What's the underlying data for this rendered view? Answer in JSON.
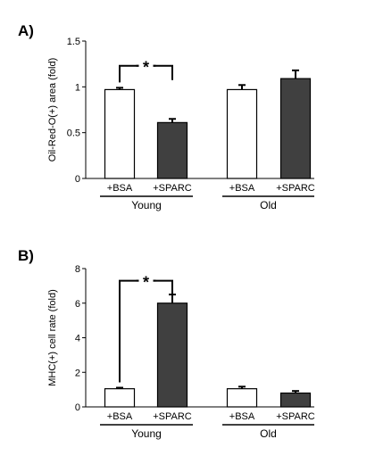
{
  "colors": {
    "bsa": "#ffffff",
    "sparc": "#404040",
    "stroke": "#000000"
  },
  "chart_data": [
    {
      "type": "bar",
      "panel_label": "A)",
      "ylabel": "Oil-Red-O(+) area (fold)",
      "ylim": [
        0,
        1.5
      ],
      "yticks": [
        0,
        0.5,
        1,
        1.5
      ],
      "ytick_labels": [
        "0",
        "0.5",
        "1",
        "1.5"
      ],
      "groups": [
        {
          "name": "Young",
          "categories": [
            "+BSA",
            "+SPARC"
          ],
          "values": [
            0.97,
            0.61
          ],
          "errors": [
            0.02,
            0.04
          ]
        },
        {
          "name": "Old",
          "categories": [
            "+BSA",
            "+SPARC"
          ],
          "values": [
            0.97,
            1.09
          ],
          "errors": [
            0.05,
            0.09
          ]
        }
      ],
      "annotations": [
        {
          "text": "*",
          "group": 0,
          "bracket_y": 1.23
        }
      ]
    },
    {
      "type": "bar",
      "panel_label": "B)",
      "ylabel": "MHC(+) cell rate (fold)",
      "ylim": [
        0,
        8
      ],
      "yticks": [
        0,
        2,
        4,
        6,
        8
      ],
      "ytick_labels": [
        "0",
        "2",
        "4",
        "6",
        "8"
      ],
      "groups": [
        {
          "name": "Young",
          "categories": [
            "+BSA",
            "+SPARC"
          ],
          "values": [
            1.05,
            6.0
          ],
          "errors": [
            0.06,
            0.5
          ]
        },
        {
          "name": "Old",
          "categories": [
            "+BSA",
            "+SPARC"
          ],
          "values": [
            1.05,
            0.8
          ],
          "errors": [
            0.12,
            0.12
          ]
        }
      ],
      "annotations": [
        {
          "text": "*",
          "group": 0,
          "bracket_y": 7.3
        }
      ]
    }
  ]
}
